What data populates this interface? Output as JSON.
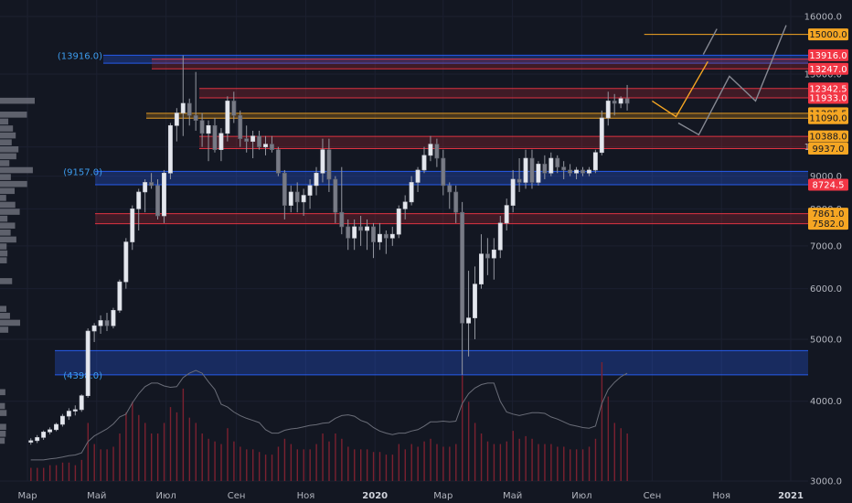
{
  "chart_data": {
    "type": "candlestick",
    "y_scale": "log",
    "ylim": [
      3000,
      17000
    ],
    "y_ticks": [
      "16000.0",
      "13000.0",
      "10000.0",
      "9000.0",
      "8000.0",
      "7000.0",
      "6000.0",
      "5000.0",
      "4000.0",
      "3000.0"
    ],
    "x_ticks": [
      {
        "label": "Мар",
        "date": "2019-03-01",
        "bold": false
      },
      {
        "label": "Май",
        "date": "2019-05-01",
        "bold": false
      },
      {
        "label": "Июл",
        "date": "2019-07-01",
        "bold": false
      },
      {
        "label": "Сен",
        "date": "2019-09-01",
        "bold": false
      },
      {
        "label": "Ноя",
        "date": "2019-11-01",
        "bold": false
      },
      {
        "label": "2020",
        "date": "2020-01-01",
        "bold": true
      },
      {
        "label": "Мар",
        "date": "2020-03-01",
        "bold": false
      },
      {
        "label": "Май",
        "date": "2020-05-01",
        "bold": false
      },
      {
        "label": "Июл",
        "date": "2020-07-01",
        "bold": false
      },
      {
        "label": "Сен",
        "date": "2020-09-01",
        "bold": false
      },
      {
        "label": "Ноя",
        "date": "2020-11-01",
        "bold": false
      },
      {
        "label": "2021",
        "date": "2021-01-01",
        "bold": true
      }
    ],
    "candles": [
      [
        3450,
        3500,
        3420,
        3470
      ],
      [
        3470,
        3540,
        3440,
        3510
      ],
      [
        3510,
        3600,
        3480,
        3580
      ],
      [
        3580,
        3640,
        3550,
        3610
      ],
      [
        3610,
        3700,
        3590,
        3680
      ],
      [
        3680,
        3820,
        3650,
        3790
      ],
      [
        3790,
        3900,
        3740,
        3860
      ],
      [
        3860,
        3940,
        3800,
        3880
      ],
      [
        3880,
        4100,
        3850,
        4080
      ],
      [
        4080,
        5200,
        4050,
        5150
      ],
      [
        5150,
        5300,
        4950,
        5250
      ],
      [
        5250,
        5450,
        5100,
        5350
      ],
      [
        5350,
        5500,
        5150,
        5250
      ],
      [
        5250,
        5600,
        5200,
        5550
      ],
      [
        5550,
        6200,
        5500,
        6150
      ],
      [
        6150,
        7200,
        6000,
        7100
      ],
      [
        7100,
        8100,
        6900,
        8000
      ],
      [
        8000,
        8600,
        7400,
        8500
      ],
      [
        8500,
        8900,
        7900,
        8800
      ],
      [
        8800,
        9100,
        8600,
        8700
      ],
      [
        8700,
        8900,
        7700,
        7800
      ],
      [
        7800,
        9200,
        7600,
        9100
      ],
      [
        9100,
        10900,
        8900,
        10800
      ],
      [
        10800,
        11500,
        10200,
        11300
      ],
      [
        11300,
        13900,
        10400,
        11700
      ],
      [
        11700,
        11900,
        10800,
        11200
      ],
      [
        11200,
        13100,
        10600,
        11000
      ],
      [
        11000,
        11300,
        10000,
        10500
      ],
      [
        10500,
        11000,
        9500,
        10800
      ],
      [
        10800,
        11100,
        9800,
        9900
      ],
      [
        9900,
        10700,
        9500,
        10500
      ],
      [
        10500,
        12000,
        10200,
        11800
      ],
      [
        11800,
        12200,
        10900,
        11200
      ],
      [
        11200,
        11400,
        10000,
        10300
      ],
      [
        10300,
        10800,
        9800,
        10200
      ],
      [
        10200,
        10600,
        9600,
        10400
      ],
      [
        10400,
        10600,
        9900,
        10000
      ],
      [
        10000,
        10400,
        9700,
        10100
      ],
      [
        10100,
        10400,
        9800,
        9900
      ],
      [
        9900,
        10000,
        9000,
        9100
      ],
      [
        9100,
        9200,
        7700,
        8100
      ],
      [
        8100,
        8700,
        7900,
        8500
      ],
      [
        8500,
        8800,
        7900,
        8200
      ],
      [
        8200,
        8600,
        7800,
        8400
      ],
      [
        8400,
        8900,
        8000,
        8700
      ],
      [
        8700,
        9300,
        8400,
        9100
      ],
      [
        9100,
        10300,
        8800,
        9900
      ],
      [
        9900,
        10300,
        8500,
        8900
      ],
      [
        8900,
        9000,
        7600,
        7900
      ],
      [
        7900,
        9300,
        7300,
        7500
      ],
      [
        7500,
        7700,
        6900,
        7200
      ],
      [
        7200,
        7700,
        6900,
        7500
      ],
      [
        7500,
        7800,
        7000,
        7400
      ],
      [
        7400,
        7700,
        6900,
        7500
      ],
      [
        7500,
        7600,
        6700,
        7100
      ],
      [
        7100,
        7600,
        6900,
        7300
      ],
      [
        7300,
        7400,
        6800,
        7200
      ],
      [
        7200,
        7500,
        7000,
        7300
      ],
      [
        7300,
        8100,
        7200,
        8000
      ],
      [
        8000,
        8400,
        7700,
        8200
      ],
      [
        8200,
        9000,
        8100,
        8800
      ],
      [
        8800,
        9300,
        8500,
        9200
      ],
      [
        9200,
        10000,
        9100,
        9700
      ],
      [
        9700,
        10400,
        9500,
        10100
      ],
      [
        10100,
        10300,
        9300,
        9600
      ],
      [
        9600,
        9900,
        8400,
        8700
      ],
      [
        8700,
        8800,
        8000,
        8500
      ],
      [
        8500,
        8700,
        7600,
        7900
      ],
      [
        7900,
        8200,
        4400,
        5300
      ],
      [
        5300,
        6400,
        4700,
        5400
      ],
      [
        5400,
        6500,
        5000,
        6100
      ],
      [
        6100,
        7300,
        6000,
        6800
      ],
      [
        6800,
        7200,
        6300,
        6700
      ],
      [
        6700,
        7200,
        6200,
        6900
      ],
      [
        6900,
        7800,
        6700,
        7600
      ],
      [
        7600,
        8300,
        7400,
        8100
      ],
      [
        8100,
        9200,
        7900,
        8900
      ],
      [
        8900,
        9600,
        8500,
        8800
      ],
      [
        8800,
        9900,
        8600,
        9600
      ],
      [
        9600,
        9900,
        8600,
        8800
      ],
      [
        8800,
        9500,
        8700,
        9400
      ],
      [
        9400,
        9700,
        8900,
        9100
      ],
      [
        9100,
        9800,
        9000,
        9600
      ],
      [
        9600,
        9700,
        9100,
        9300
      ],
      [
        9300,
        9500,
        8900,
        9200
      ],
      [
        9200,
        9400,
        9000,
        9100
      ],
      [
        9100,
        9300,
        8900,
        9200
      ],
      [
        9200,
        9300,
        9000,
        9100
      ],
      [
        9100,
        9300,
        9000,
        9200
      ],
      [
        9200,
        9900,
        9100,
        9800
      ],
      [
        9800,
        11400,
        9700,
        11100
      ],
      [
        11100,
        12200,
        10800,
        11800
      ],
      [
        11800,
        12100,
        11200,
        11700
      ],
      [
        11700,
        12000,
        11500,
        11900
      ],
      [
        11900,
        12500,
        11400,
        11700
      ]
    ],
    "volume": [
      5,
      5,
      5,
      6,
      6,
      7,
      7,
      6,
      8,
      22,
      14,
      12,
      12,
      13,
      18,
      26,
      30,
      25,
      22,
      18,
      18,
      22,
      28,
      26,
      35,
      24,
      22,
      18,
      16,
      15,
      14,
      20,
      15,
      13,
      12,
      12,
      11,
      10,
      10,
      13,
      16,
      14,
      12,
      12,
      12,
      14,
      18,
      15,
      18,
      16,
      13,
      12,
      12,
      12,
      11,
      11,
      10,
      10,
      14,
      12,
      14,
      13,
      15,
      16,
      14,
      13,
      13,
      14,
      40,
      30,
      22,
      18,
      15,
      14,
      14,
      15,
      19,
      16,
      17,
      16,
      14,
      14,
      14,
      13,
      13,
      12,
      12,
      12,
      13,
      16,
      45,
      32,
      22,
      20,
      18
    ],
    "zones": [
      {
        "low": 13520,
        "high": 13916,
        "color": "blue"
      },
      {
        "low": 13247,
        "high": 13720,
        "color": "red"
      },
      {
        "low": 11933,
        "high": 12342.5,
        "color": "red"
      },
      {
        "low": 11090,
        "high": 11285.5,
        "color": "orange"
      },
      {
        "low": 9937,
        "high": 10388,
        "color": "red"
      },
      {
        "low": 8724.5,
        "high": 9157,
        "color": "blue"
      },
      {
        "low": 7582,
        "high": 7861,
        "color": "red"
      },
      {
        "low": 4398,
        "high": 4800,
        "color": "blue"
      }
    ],
    "zone_labels": [
      "(13916.0)",
      "(9157.0)",
      "(4398.0)"
    ],
    "price_badges": [
      {
        "label": "15000.0",
        "value": 15000,
        "style": "orange-fill"
      },
      {
        "label": "13916.0",
        "value": 13916,
        "style": "red-fill"
      },
      {
        "label": "13247.0",
        "value": 13247,
        "style": "red-fill"
      },
      {
        "label": "12342.5",
        "value": 12342.5,
        "style": "red-fill"
      },
      {
        "label": "11933.0",
        "value": 11933,
        "style": "red-fill"
      },
      {
        "label": "11285.5",
        "value": 11285.5,
        "style": "orange-fill"
      },
      {
        "label": "11090.0",
        "value": 11090,
        "style": "orange-fill"
      },
      {
        "label": "10388.0",
        "value": 10388,
        "style": "orange-fill"
      },
      {
        "label": "9937.0",
        "value": 9937,
        "style": "orange-fill"
      },
      {
        "label": "8724.5",
        "value": 8724.5,
        "style": "red-fill"
      },
      {
        "label": "7861.0",
        "value": 7861,
        "style": "orange-fill"
      },
      {
        "label": "7582.0",
        "value": 7582,
        "style": "orange-fill"
      }
    ],
    "projections": [
      {
        "color": "orange",
        "points": [
          [
            "2020-09-01",
            11800
          ],
          [
            "2020-09-22",
            11150
          ],
          [
            "2020-10-20",
            13600
          ]
        ]
      },
      {
        "color": "gray",
        "points": [
          [
            "2020-09-24",
            10900
          ],
          [
            "2020-10-12",
            10450
          ],
          [
            "2020-11-08",
            12900
          ],
          [
            "2020-12-01",
            11800
          ],
          [
            "2020-12-28",
            15500
          ]
        ]
      },
      {
        "color": "gray",
        "points": [
          [
            "2020-10-16",
            13950
          ],
          [
            "2020-10-28",
            15300
          ]
        ]
      }
    ],
    "colors": {
      "background": "#131722",
      "candle_up": "#e4e7ee",
      "candle_down": "#787b86",
      "wick": "#9598a1",
      "volume": "#7b2130",
      "orange": "#f5a623",
      "red_badge": "#f23645",
      "blue_zone": "#2962ff",
      "label_blue": "#3d9df0"
    }
  }
}
